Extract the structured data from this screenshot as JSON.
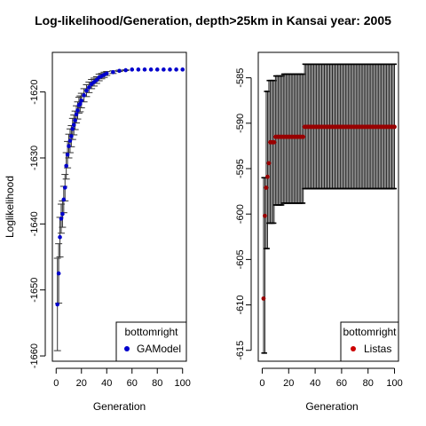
{
  "title": "Log-likelihood/Generation, depth>25km in Kansai year: 2005",
  "chart_data": [
    {
      "type": "scatter",
      "title": "Log-likelihood/Generation, depth>25km in Kansai year: 2005",
      "xlabel": "Generation",
      "ylabel": "Loglikelihood",
      "xlim": [
        -3,
        103
      ],
      "ylim": [
        -1660.8,
        -1614
      ],
      "xticks": [
        0,
        20,
        40,
        60,
        80,
        100
      ],
      "yticks": [
        -1660,
        -1650,
        -1640,
        -1630,
        -1620
      ],
      "grid": false,
      "legend": {
        "title": "bottomright",
        "position": "bottom-right",
        "entries": [
          "GAModel"
        ]
      },
      "series": [
        {
          "name": "GAModel",
          "color": "#0000cc",
          "x": [
            1,
            2,
            3,
            4,
            5,
            6,
            7,
            8,
            9,
            10,
            11,
            12,
            13,
            14,
            15,
            16,
            17,
            18,
            19,
            20,
            22,
            24,
            26,
            28,
            30,
            32,
            34,
            36,
            38,
            40,
            45,
            50,
            55,
            60,
            65,
            70,
            75,
            80,
            85,
            90,
            95,
            100
          ],
          "y": [
            -1652.2,
            -1647.5,
            -1642,
            -1639.2,
            -1638.5,
            -1636.3,
            -1634.5,
            -1631.2,
            -1629.5,
            -1628.2,
            -1627.4,
            -1626.7,
            -1625.6,
            -1625,
            -1624.3,
            -1623.4,
            -1622.8,
            -1622,
            -1621.8,
            -1621.3,
            -1620.5,
            -1619.8,
            -1619.3,
            -1618.8,
            -1618.5,
            -1618.2,
            -1617.8,
            -1617.6,
            -1617.4,
            -1617.2,
            -1617,
            -1616.8,
            -1616.7,
            -1616.6,
            -1616.6,
            -1616.6,
            -1616.6,
            -1616.6,
            -1616.6,
            -1616.6,
            -1616.6,
            -1616.6
          ],
          "err": [
            7,
            4.5,
            3,
            2.2,
            2,
            2,
            2,
            2,
            2,
            1.8,
            1.8,
            1.6,
            1.6,
            1.5,
            1.4,
            1.3,
            1.3,
            1.2,
            1.2,
            1.1,
            1,
            0.9,
            0.8,
            0.7,
            0.6,
            0.5,
            0.5,
            0.4,
            0.4,
            0.3,
            0.2,
            0.1,
            0.05,
            0,
            0,
            0,
            0,
            0,
            0,
            0,
            0,
            0
          ]
        }
      ]
    },
    {
      "type": "scatter",
      "title": "",
      "xlabel": "Generation",
      "ylabel": "",
      "xlim": [
        -3,
        103
      ],
      "ylim": [
        -616.2,
        -582.2
      ],
      "xticks": [
        0,
        20,
        40,
        60,
        80,
        100
      ],
      "yticks": [
        -615,
        -610,
        -605,
        -600,
        -595,
        -590,
        -585
      ],
      "grid": false,
      "legend": {
        "title": "bottomright",
        "position": "bottom-right",
        "entries": [
          "Listas"
        ]
      },
      "series": [
        {
          "name": "Listas",
          "color": "#990000",
          "x": [
            1,
            2,
            3,
            4,
            5,
            6,
            7,
            8,
            9,
            10,
            11,
            12,
            13,
            14,
            15,
            16,
            17,
            18,
            19,
            20,
            21,
            22,
            23,
            24,
            25,
            26,
            27,
            28,
            29,
            30,
            31,
            32,
            33,
            34,
            35,
            36,
            37,
            38,
            39,
            40,
            41,
            42,
            43,
            44,
            45,
            46,
            47,
            48,
            49,
            50,
            51,
            52,
            53,
            54,
            55,
            56,
            57,
            58,
            59,
            60,
            61,
            62,
            63,
            64,
            65,
            66,
            67,
            68,
            69,
            70,
            71,
            72,
            73,
            74,
            75,
            76,
            77,
            78,
            79,
            80,
            81,
            82,
            83,
            84,
            85,
            86,
            87,
            88,
            89,
            90,
            91,
            92,
            93,
            94,
            95,
            96,
            97,
            98,
            99,
            100
          ],
          "y": [
            -609.3,
            -600.2,
            -597.1,
            -595.9,
            -594.4,
            -592.1,
            -592.1,
            -592.1,
            -592.1,
            -591.5,
            -591.5,
            -591.5,
            -591.5,
            -591.5,
            -591.5,
            -591.5,
            -591.5,
            -591.5,
            -591.5,
            -591.5,
            -591.5,
            -591.5,
            -591.5,
            -591.5,
            -591.5,
            -591.5,
            -591.5,
            -591.5,
            -591.5,
            -591.5,
            -591.5,
            -590.4,
            -590.4,
            -590.4,
            -590.4,
            -590.4,
            -590.4,
            -590.4,
            -590.4,
            -590.4,
            -590.4,
            -590.4,
            -590.4,
            -590.4,
            -590.4,
            -590.4,
            -590.4,
            -590.4,
            -590.4,
            -590.4,
            -590.4,
            -590.4,
            -590.4,
            -590.4,
            -590.4,
            -590.4,
            -590.4,
            -590.4,
            -590.4,
            -590.4,
            -590.4,
            -590.4,
            -590.4,
            -590.4,
            -590.4,
            -590.4,
            -590.4,
            -590.4,
            -590.4,
            -590.4,
            -590.4,
            -590.4,
            -590.4,
            -590.4,
            -590.4,
            -590.4,
            -590.4,
            -590.4,
            -590.4,
            -590.4,
            -590.4,
            -590.4,
            -590.4,
            -590.4,
            -590.4,
            -590.4,
            -590.4,
            -590.4,
            -590.4,
            -590.4,
            -590.4,
            -590.4,
            -590.4,
            -590.4,
            -590.4,
            -590.4,
            -590.4,
            -590.4,
            -590.4,
            -590.4
          ],
          "err_low": [
            6,
            4,
            3,
            2.8,
            2.5,
            2,
            1.5,
            1.2,
            1,
            0.8
          ],
          "upper_steps": [
            [
              1,
              -596
            ],
            [
              3,
              -586.5
            ],
            [
              5,
              -585.3
            ],
            [
              10,
              -584.8
            ],
            [
              16,
              -584.6
            ],
            [
              32,
              -583.5
            ]
          ],
          "lower_steps": [
            [
              1,
              -615.3
            ],
            [
              3,
              -603.8
            ],
            [
              5,
              -601
            ],
            [
              10,
              -599
            ],
            [
              16,
              -598.8
            ],
            [
              32,
              -597.2
            ]
          ]
        }
      ]
    }
  ]
}
